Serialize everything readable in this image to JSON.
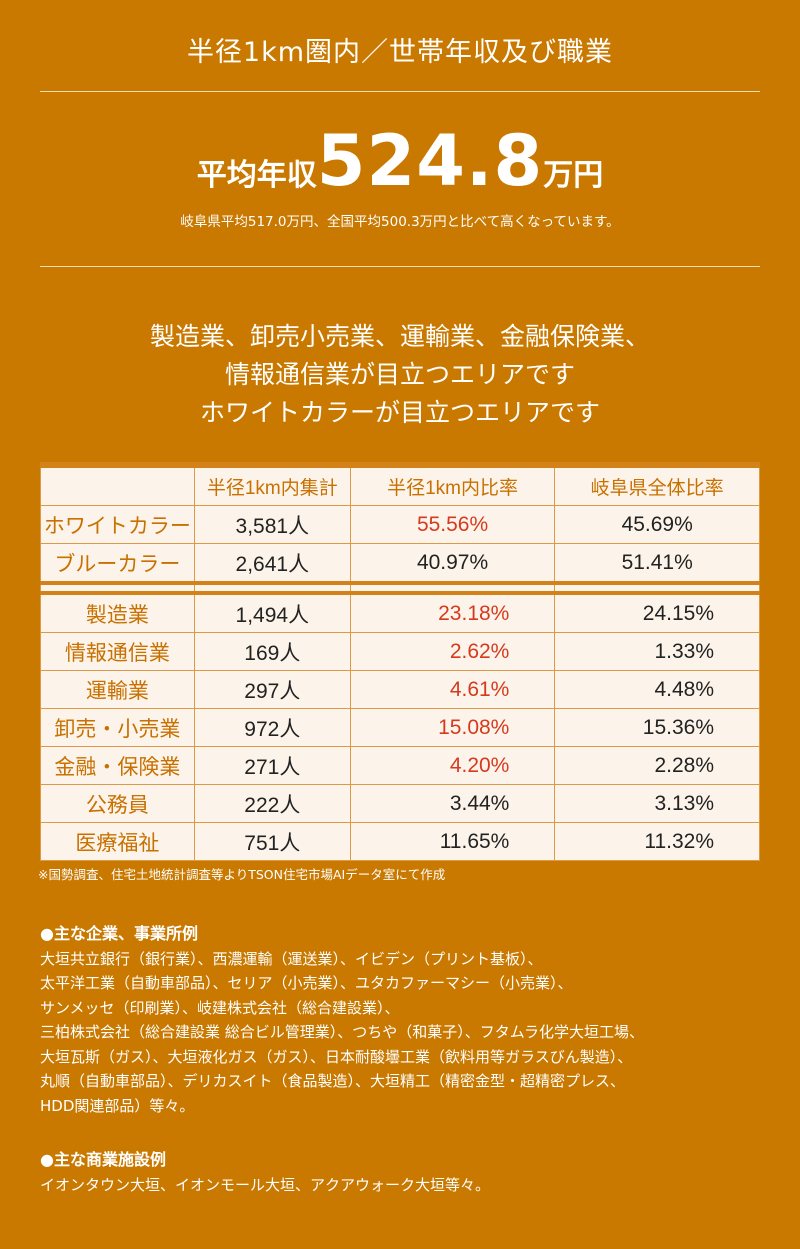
{
  "title": "半径1km圏内／世帯年収及び職業",
  "average": {
    "label": "平均年収",
    "value": "524.8",
    "unit": "万円",
    "note": "岐阜県平均517.0万円、全国平均500.3万円と比べて高くなっています。"
  },
  "headline": [
    "製造業、卸売小売業、運輸業、金融保険業、",
    "情報通信業が目立つエリアです",
    "ホワイトカラーが目立つエリアです"
  ],
  "table": {
    "headers": [
      "",
      "半径1km内集計",
      "半径1km内比率",
      "岐阜県全体比率"
    ],
    "rows_top": [
      {
        "label": "ホワイトカラー",
        "count": "3,581人",
        "ratio": "55.56%",
        "pref": "45.69%",
        "highlight": true
      },
      {
        "label": "ブルーカラー",
        "count": "2,641人",
        "ratio": "40.97%",
        "pref": "51.41%",
        "highlight": false
      }
    ],
    "rows": [
      {
        "label": "製造業",
        "count": "1,494人",
        "ratio": "23.18%",
        "pref": "24.15%",
        "highlight": true
      },
      {
        "label": "情報通信業",
        "count": "169人",
        "ratio": "2.62%",
        "pref": "1.33%",
        "highlight": true
      },
      {
        "label": "運輸業",
        "count": "297人",
        "ratio": "4.61%",
        "pref": "4.48%",
        "highlight": true
      },
      {
        "label": "卸売・小売業",
        "count": "972人",
        "ratio": "15.08%",
        "pref": "15.36%",
        "highlight": true
      },
      {
        "label": "金融・保険業",
        "count": "271人",
        "ratio": "4.20%",
        "pref": "2.28%",
        "highlight": true
      },
      {
        "label": "公務員",
        "count": "222人",
        "ratio": "3.44%",
        "pref": "3.13%",
        "highlight": false
      },
      {
        "label": "医療福祉",
        "count": "751人",
        "ratio": "11.65%",
        "pref": "11.32%",
        "highlight": false
      }
    ]
  },
  "source": "※国勢調査、住宅土地統計調査等よりTSON住宅市場AIデータ室にて作成",
  "companies": {
    "heading": "●主な企業、事業所例",
    "lines": [
      "大垣共立銀行（銀行業）、西濃運輸（運送業）、イビデン（プリント基板）、",
      "太平洋工業（自動車部品）、セリア（小売業）、ユタカファーマシー（小売業）、",
      "サンメッセ（印刷業）、岐建株式会社（総合建設業）、",
      "三柏株式会社（総合建設業 総合ビル管理業）、つちや（和菓子）、フタムラ化学大垣工場、",
      "大垣瓦斯（ガス）、大垣液化ガス（ガス）、日本耐酸壜工業（飲料用等ガラスびん製造）、",
      "丸順（自動車部品）、デリカスイト（食品製造）、大垣精工（精密金型・超精密プレス、",
      "HDD関連部品）等々。"
    ]
  },
  "commercial": {
    "heading": "●主な商業施設例",
    "lines": [
      "イオンタウン大垣、イオンモール大垣、アクアウォーク大垣等々。"
    ]
  },
  "colors": {
    "background": "#c97800",
    "table_bg": "#fcf4ea",
    "label": "#c87000",
    "highlight": "#d63a1e"
  }
}
